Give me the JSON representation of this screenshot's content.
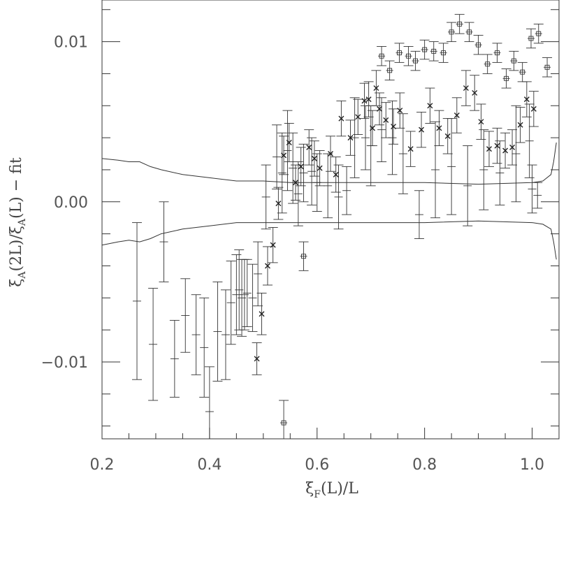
{
  "chart_data": {
    "type": "scatter",
    "title": "",
    "xlabel": {
      "pre": "ξ",
      "sub": "F",
      "post": "(L)/L"
    },
    "ylabel": {
      "p1": "ξ",
      "s1": "A",
      "p2": "(2L)/ξ",
      "s2": "A",
      "p3": "(L)  −  fit"
    },
    "xlim": [
      0.2,
      1.05
    ],
    "ylim": [
      -0.0148,
      0.0126
    ],
    "x_ticks": [
      0.2,
      0.4,
      0.6,
      0.8,
      1.0
    ],
    "x_tick_labels": [
      "0.2",
      "0.4",
      "0.6",
      "0.8",
      "1.0"
    ],
    "y_ticks": [
      -0.01,
      0.0,
      0.01
    ],
    "y_tick_labels": [
      "−0.01",
      "0.00",
      "0.01"
    ],
    "grid": false,
    "series": [
      {
        "marker": "plus",
        "points": [
          {
            "x": 0.265,
            "y": -0.0062,
            "e": 0.0049
          },
          {
            "x": 0.295,
            "y": -0.0089,
            "e": 0.0035
          },
          {
            "x": 0.315,
            "y": -0.0025,
            "e": 0.0025
          },
          {
            "x": 0.335,
            "y": -0.0098,
            "e": 0.0024
          },
          {
            "x": 0.355,
            "y": -0.0071,
            "e": 0.0023
          },
          {
            "x": 0.375,
            "y": -0.0083,
            "e": 0.0025
          },
          {
            "x": 0.39,
            "y": -0.0091,
            "e": 0.0031
          },
          {
            "x": 0.4,
            "y": -0.0131,
            "e": 0.0028
          },
          {
            "x": 0.415,
            "y": -0.0081,
            "e": 0.0031
          },
          {
            "x": 0.43,
            "y": -0.0083,
            "e": 0.0028
          },
          {
            "x": 0.44,
            "y": -0.0063,
            "e": 0.0026
          },
          {
            "x": 0.45,
            "y": -0.0058,
            "e": 0.0025
          },
          {
            "x": 0.455,
            "y": -0.0055,
            "e": 0.0025
          },
          {
            "x": 0.46,
            "y": -0.006,
            "e": 0.0024
          },
          {
            "x": 0.465,
            "y": -0.0058,
            "e": 0.0022
          },
          {
            "x": 0.47,
            "y": -0.0057,
            "e": 0.0021
          },
          {
            "x": 0.48,
            "y": -0.006,
            "e": 0.0021
          },
          {
            "x": 0.49,
            "y": -0.0045,
            "e": 0.002
          },
          {
            "x": 0.505,
            "y": 0.0003,
            "e": 0.002
          },
          {
            "x": 0.525,
            "y": 0.0028,
            "e": 0.002
          },
          {
            "x": 0.535,
            "y": 0.0018,
            "e": 0.0025
          },
          {
            "x": 0.545,
            "y": 0.0032,
            "e": 0.0025
          },
          {
            "x": 0.555,
            "y": 0.0021,
            "e": 0.0022
          },
          {
            "x": 0.565,
            "y": 0.0005,
            "e": 0.002
          },
          {
            "x": 0.575,
            "y": 0.0018,
            "e": 0.0018
          },
          {
            "x": 0.59,
            "y": 0.0019,
            "e": 0.0021
          },
          {
            "x": 0.6,
            "y": 0.0012,
            "e": 0.0018
          },
          {
            "x": 0.62,
            "y": 0.001,
            "e": 0.002
          },
          {
            "x": 0.64,
            "y": 0.0003,
            "e": 0.002
          },
          {
            "x": 0.655,
            "y": 0.0007,
            "e": 0.0015
          },
          {
            "x": 0.67,
            "y": 0.004,
            "e": 0.0025
          },
          {
            "x": 0.69,
            "y": 0.004,
            "e": 0.002
          },
          {
            "x": 0.7,
            "y": 0.0035,
            "e": 0.0025
          },
          {
            "x": 0.72,
            "y": 0.0045,
            "e": 0.002
          },
          {
            "x": 0.74,
            "y": 0.004,
            "e": 0.0023
          },
          {
            "x": 0.76,
            "y": 0.003,
            "e": 0.0025
          },
          {
            "x": 0.79,
            "y": -0.0008,
            "e": 0.0015
          },
          {
            "x": 0.82,
            "y": 0.002,
            "e": 0.003
          },
          {
            "x": 0.85,
            "y": 0.0022,
            "e": 0.003
          },
          {
            "x": 0.88,
            "y": 0.001,
            "e": 0.0025
          },
          {
            "x": 0.91,
            "y": 0.002,
            "e": 0.0025
          },
          {
            "x": 0.94,
            "y": 0.0018,
            "e": 0.002
          },
          {
            "x": 0.97,
            "y": 0.003,
            "e": 0.003
          },
          {
            "x": 0.995,
            "y": 0.0038,
            "e": 0.0023
          },
          {
            "x": 1.0,
            "y": 0.0008,
            "e": 0.0015
          },
          {
            "x": 1.01,
            "y": 0.0004,
            "e": 0.0008
          }
        ]
      },
      {
        "marker": "x",
        "points": [
          {
            "x": 0.488,
            "y": -0.0098,
            "e": 0.001
          },
          {
            "x": 0.497,
            "y": -0.007,
            "e": 0.0013
          },
          {
            "x": 0.508,
            "y": -0.004,
            "e": 0.0012
          },
          {
            "x": 0.518,
            "y": -0.0027,
            "e": 0.0011
          },
          {
            "x": 0.528,
            "y": -0.0001,
            "e": 0.001
          },
          {
            "x": 0.538,
            "y": 0.0029,
            "e": 0.0012
          },
          {
            "x": 0.548,
            "y": 0.0037,
            "e": 0.0012
          },
          {
            "x": 0.56,
            "y": 0.0012,
            "e": 0.0011
          },
          {
            "x": 0.57,
            "y": 0.0022,
            "e": 0.0012
          },
          {
            "x": 0.585,
            "y": 0.0034,
            "e": 0.0011
          },
          {
            "x": 0.595,
            "y": 0.0027,
            "e": 0.0011
          },
          {
            "x": 0.605,
            "y": 0.0021,
            "e": 0.0011
          },
          {
            "x": 0.625,
            "y": 0.003,
            "e": 0.0011
          },
          {
            "x": 0.635,
            "y": 0.0017,
            "e": 0.0011
          },
          {
            "x": 0.645,
            "y": 0.0052,
            "e": 0.0011
          },
          {
            "x": 0.662,
            "y": 0.004,
            "e": 0.0011
          },
          {
            "x": 0.676,
            "y": 0.0053,
            "e": 0.0011
          },
          {
            "x": 0.688,
            "y": 0.0063,
            "e": 0.0011
          },
          {
            "x": 0.696,
            "y": 0.0064,
            "e": 0.0011
          },
          {
            "x": 0.703,
            "y": 0.0046,
            "e": 0.0011
          },
          {
            "x": 0.71,
            "y": 0.0071,
            "e": 0.0011
          },
          {
            "x": 0.716,
            "y": 0.0058,
            "e": 0.001
          },
          {
            "x": 0.728,
            "y": 0.0051,
            "e": 0.0011
          },
          {
            "x": 0.742,
            "y": 0.0047,
            "e": 0.0011
          },
          {
            "x": 0.754,
            "y": 0.0057,
            "e": 0.0011
          },
          {
            "x": 0.774,
            "y": 0.0033,
            "e": 0.0011
          },
          {
            "x": 0.794,
            "y": 0.0045,
            "e": 0.0011
          },
          {
            "x": 0.81,
            "y": 0.006,
            "e": 0.0011
          },
          {
            "x": 0.827,
            "y": 0.0046,
            "e": 0.0011
          },
          {
            "x": 0.843,
            "y": 0.0041,
            "e": 0.0011
          },
          {
            "x": 0.86,
            "y": 0.0054,
            "e": 0.0011
          },
          {
            "x": 0.877,
            "y": 0.0071,
            "e": 0.0011
          },
          {
            "x": 0.893,
            "y": 0.0068,
            "e": 0.0011
          },
          {
            "x": 0.905,
            "y": 0.005,
            "e": 0.0011
          },
          {
            "x": 0.92,
            "y": 0.0033,
            "e": 0.0011
          },
          {
            "x": 0.935,
            "y": 0.0035,
            "e": 0.0011
          },
          {
            "x": 0.95,
            "y": 0.0032,
            "e": 0.0011
          },
          {
            "x": 0.963,
            "y": 0.0034,
            "e": 0.0011
          },
          {
            "x": 0.978,
            "y": 0.0048,
            "e": 0.0011
          },
          {
            "x": 0.99,
            "y": 0.0064,
            "e": 0.0011
          },
          {
            "x": 1.003,
            "y": 0.0058,
            "e": 0.0011
          }
        ]
      },
      {
        "marker": "box",
        "points": [
          {
            "x": 0.575,
            "y": -0.0034,
            "e": 0.0009
          },
          {
            "x": 0.538,
            "y": -0.0138,
            "e": 0.0014
          },
          {
            "x": 0.72,
            "y": 0.0091,
            "e": 0.0006
          },
          {
            "x": 0.735,
            "y": 0.0082,
            "e": 0.0006
          },
          {
            "x": 0.753,
            "y": 0.0093,
            "e": 0.0006
          },
          {
            "x": 0.77,
            "y": 0.0091,
            "e": 0.0006
          },
          {
            "x": 0.783,
            "y": 0.0088,
            "e": 0.0006
          },
          {
            "x": 0.8,
            "y": 0.0095,
            "e": 0.0006
          },
          {
            "x": 0.817,
            "y": 0.0094,
            "e": 0.0006
          },
          {
            "x": 0.835,
            "y": 0.0093,
            "e": 0.0006
          },
          {
            "x": 0.85,
            "y": 0.0106,
            "e": 0.0006
          },
          {
            "x": 0.865,
            "y": 0.0111,
            "e": 0.0006
          },
          {
            "x": 0.883,
            "y": 0.0106,
            "e": 0.0006
          },
          {
            "x": 0.9,
            "y": 0.0098,
            "e": 0.0006
          },
          {
            "x": 0.917,
            "y": 0.0086,
            "e": 0.0006
          },
          {
            "x": 0.935,
            "y": 0.0093,
            "e": 0.0006
          },
          {
            "x": 0.952,
            "y": 0.0077,
            "e": 0.0006
          },
          {
            "x": 0.966,
            "y": 0.0088,
            "e": 0.0006
          },
          {
            "x": 0.982,
            "y": 0.0081,
            "e": 0.0006
          },
          {
            "x": 0.998,
            "y": 0.0102,
            "e": 0.0006
          },
          {
            "x": 1.012,
            "y": 0.0105,
            "e": 0.0006
          },
          {
            "x": 1.028,
            "y": 0.0084,
            "e": 0.0006
          }
        ]
      }
    ],
    "curves": [
      {
        "x": [
          0.2,
          0.23,
          0.25,
          0.27,
          0.29,
          0.31,
          0.35,
          0.4,
          0.45,
          0.5,
          0.55,
          0.6,
          0.7,
          0.8,
          0.9,
          1.0,
          1.02,
          1.035,
          1.04,
          1.045
        ],
        "y": [
          0.0027,
          0.0026,
          0.0025,
          0.0025,
          0.0022,
          0.002,
          0.0017,
          0.0015,
          0.0013,
          0.0013,
          0.0012,
          0.0012,
          0.0012,
          0.0012,
          0.0011,
          0.0012,
          0.0013,
          0.0017,
          0.0025,
          0.0037
        ]
      },
      {
        "x": [
          0.2,
          0.23,
          0.25,
          0.27,
          0.29,
          0.31,
          0.35,
          0.4,
          0.45,
          0.5,
          0.55,
          0.6,
          0.7,
          0.8,
          0.9,
          1.0,
          1.02,
          1.035,
          1.04,
          1.045
        ],
        "y": [
          -0.0027,
          -0.0025,
          -0.0024,
          -0.0025,
          -0.0023,
          -0.002,
          -0.0017,
          -0.0015,
          -0.0013,
          -0.0013,
          -0.0013,
          -0.0013,
          -0.0013,
          -0.0013,
          -0.0012,
          -0.0013,
          -0.0014,
          -0.0017,
          -0.0025,
          -0.0036
        ]
      }
    ]
  }
}
